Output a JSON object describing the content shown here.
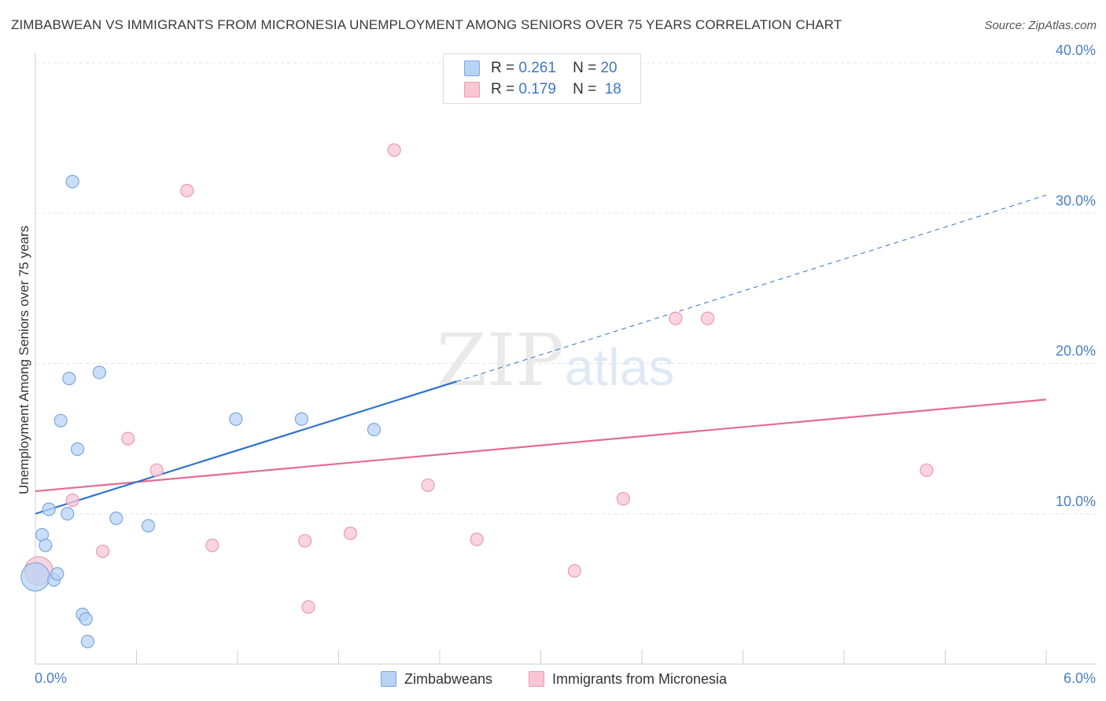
{
  "header": {
    "title": "ZIMBABWEAN VS IMMIGRANTS FROM MICRONESIA UNEMPLOYMENT AMONG SENIORS OVER 75 YEARS CORRELATION CHART",
    "source": "Source: ZipAtlas.com"
  },
  "watermark": {
    "zip": "ZIP",
    "atlas": "atlas"
  },
  "legend": {
    "rows": [
      {
        "r_label": "R =",
        "r_value": "0.261",
        "n_label": "N =",
        "n_value": "20"
      },
      {
        "r_label": "R =",
        "r_value": "0.179",
        "n_label": "N =",
        "n_value": "18"
      }
    ]
  },
  "bottom_legend": {
    "series_a": "Zimbabweans",
    "series_b": "Immigrants from Micronesia"
  },
  "colors": {
    "blue_fill": "#b8d3f5",
    "blue_stroke": "#7aa8de",
    "blue_line": "#2f73c9",
    "pink_fill": "#f8c6d5",
    "pink_stroke": "#e99ab4",
    "pink_line": "#e56b95",
    "tick_label": "#4a7fc8",
    "grid": "#e3e3e3"
  },
  "chart_data": {
    "type": "scatter",
    "title": "ZIMBABWEAN VS IMMIGRANTS FROM MICRONESIA UNEMPLOYMENT AMONG SENIORS OVER 75 YEARS CORRELATION CHART",
    "xlabel": "",
    "ylabel": "Unemployment Among Seniors over 75 years",
    "xlim": [
      0,
      6
    ],
    "ylim": [
      0,
      40
    ],
    "x_tick_labels": [
      "0.0%",
      "6.0%"
    ],
    "y_ticks": [
      10,
      20,
      30,
      40
    ],
    "y_tick_labels": [
      "10.0%",
      "20.0%",
      "30.0%",
      "40.0%"
    ],
    "grid": true,
    "series": [
      {
        "name": "Zimbabweans",
        "r": 0.261,
        "n": 20,
        "points": [
          {
            "x": 0.0,
            "y": 5.8,
            "size": "large"
          },
          {
            "x": 0.04,
            "y": 8.6
          },
          {
            "x": 0.06,
            "y": 7.9
          },
          {
            "x": 0.08,
            "y": 10.3
          },
          {
            "x": 0.11,
            "y": 5.6
          },
          {
            "x": 0.13,
            "y": 6.0
          },
          {
            "x": 0.15,
            "y": 16.2
          },
          {
            "x": 0.19,
            "y": 10.0
          },
          {
            "x": 0.2,
            "y": 19.0
          },
          {
            "x": 0.22,
            "y": 32.1
          },
          {
            "x": 0.25,
            "y": 14.3
          },
          {
            "x": 0.28,
            "y": 3.3
          },
          {
            "x": 0.3,
            "y": 3.0
          },
          {
            "x": 0.31,
            "y": 1.5
          },
          {
            "x": 0.38,
            "y": 19.4
          },
          {
            "x": 0.48,
            "y": 9.7
          },
          {
            "x": 0.67,
            "y": 9.2
          },
          {
            "x": 1.19,
            "y": 16.3
          },
          {
            "x": 1.58,
            "y": 16.3
          },
          {
            "x": 2.01,
            "y": 15.6
          }
        ],
        "trend": {
          "x0": 0.0,
          "y0": 10.0,
          "x1_solid": 2.5,
          "y1_solid": 18.8,
          "x1": 6.0,
          "y1": 31.2
        }
      },
      {
        "name": "Immigrants from Micronesia",
        "r": 0.179,
        "n": 18,
        "points": [
          {
            "x": 0.02,
            "y": 6.2,
            "size": "large"
          },
          {
            "x": 0.22,
            "y": 10.9
          },
          {
            "x": 0.4,
            "y": 7.5
          },
          {
            "x": 0.55,
            "y": 15.0
          },
          {
            "x": 0.72,
            "y": 12.9
          },
          {
            "x": 0.9,
            "y": 31.5
          },
          {
            "x": 1.05,
            "y": 7.9
          },
          {
            "x": 1.6,
            "y": 8.2
          },
          {
            "x": 1.62,
            "y": 3.8
          },
          {
            "x": 1.87,
            "y": 8.7
          },
          {
            "x": 2.13,
            "y": 34.2
          },
          {
            "x": 2.33,
            "y": 11.9
          },
          {
            "x": 2.62,
            "y": 8.3
          },
          {
            "x": 3.2,
            "y": 6.2
          },
          {
            "x": 3.49,
            "y": 11.0
          },
          {
            "x": 3.8,
            "y": 23.0
          },
          {
            "x": 3.99,
            "y": 23.0
          },
          {
            "x": 5.29,
            "y": 12.9
          }
        ],
        "trend": {
          "x0": 0.0,
          "y0": 11.5,
          "x1": 6.0,
          "y1": 17.6
        }
      }
    ]
  }
}
